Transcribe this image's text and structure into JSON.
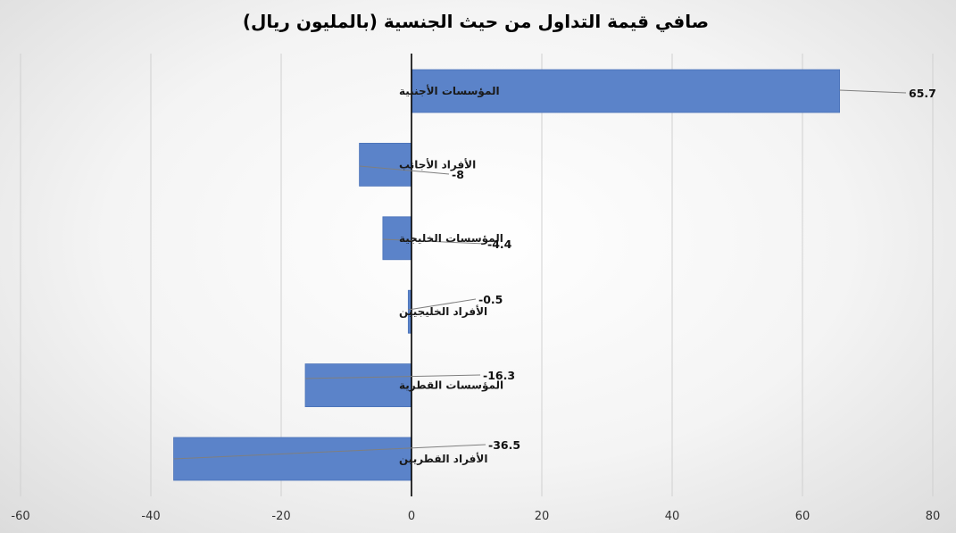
{
  "chart_data": {
    "type": "bar",
    "orientation": "horizontal",
    "title": "صافي قيمة التداول من حيث الجنسية (بالمليون ريال)",
    "xlabel": "",
    "ylabel": "",
    "categories": [
      "المؤسسات الأجنبية",
      "الأفراد الأجانب",
      "المؤسسات الخليجية",
      "الأفراد الخليجيين",
      "المؤسسات القطرية",
      "الأفراد القطريين"
    ],
    "values": [
      65.7,
      -8,
      -4.4,
      -0.5,
      -16.3,
      -36.5
    ],
    "value_labels": [
      "65.7",
      "-8",
      "-4.4",
      "-0.5",
      "-16.3",
      "-36.5"
    ],
    "xlim": [
      -60,
      80
    ],
    "xticks": [
      -60,
      -40,
      -20,
      0,
      20,
      40,
      60,
      80
    ],
    "xtick_labels": [
      "-60",
      "-40",
      "-20",
      "0",
      "20",
      "40",
      "60",
      "80"
    ],
    "grid": "vertical",
    "legend": "none",
    "colors": {
      "bar": "#5b83c9",
      "bar_edge": "#4a72b8",
      "gridline": "#d0d0d0",
      "zero_axis": "#000000",
      "leader_line": "#7f7f7f"
    }
  }
}
